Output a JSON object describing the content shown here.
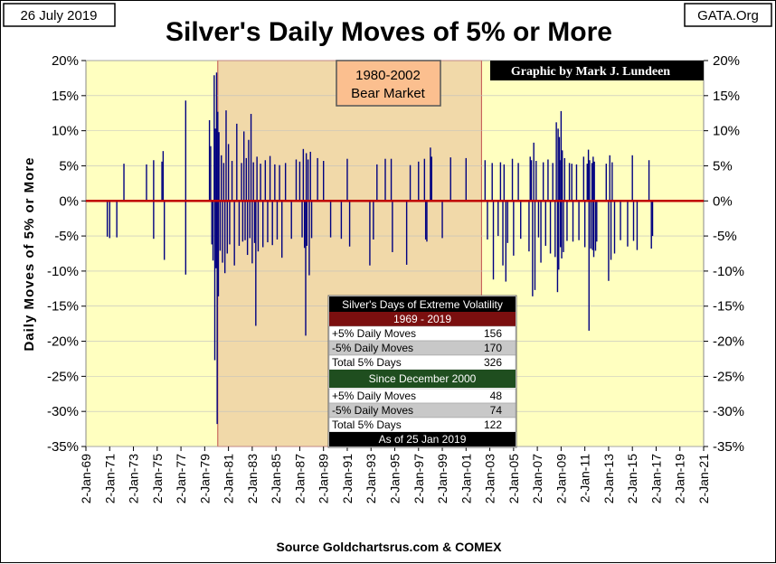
{
  "date_label": "26 July 2019",
  "site_label": "GATA.Org",
  "credit": "Graphic by Mark J. Lundeen",
  "source": "Source Goldchartsrus.com & COMEX",
  "bear_market_box": {
    "line1": "1980-2002",
    "line2": "Bear Market"
  },
  "colors": {
    "plot_bg": "#ffffc0",
    "bear_shade": "#f1d9a9",
    "bear_border": "#c0504d",
    "bars": "#000080",
    "zero_line": "#c00000",
    "label_box": "#fbbf8f",
    "table_header_red": "#7b0f0f",
    "table_header_green": "#1f4e1f",
    "table_row_gray": "#c8c8c8"
  },
  "chart_data": {
    "type": "bar",
    "title": "Silver's Daily Moves of 5% or More",
    "ylabel": "Daily Moves of 5% or More",
    "xlabel": "",
    "ylim": [
      -35,
      20
    ],
    "yticks": [
      20,
      15,
      10,
      5,
      0,
      -5,
      -10,
      -15,
      -20,
      -25,
      -30,
      -35
    ],
    "ytick_labels": [
      "20%",
      "15%",
      "10%",
      "5%",
      "0%",
      "-5%",
      "-10%",
      "-15%",
      "-20%",
      "-25%",
      "-30%",
      "-35%"
    ],
    "xlim": [
      1969.0,
      2021.0
    ],
    "xtick_labels": [
      "2-Jan-69",
      "2-Jan-71",
      "2-Jan-73",
      "2-Jan-75",
      "2-Jan-77",
      "2-Jan-79",
      "2-Jan-81",
      "2-Jan-83",
      "2-Jan-85",
      "2-Jan-87",
      "2-Jan-89",
      "2-Jan-91",
      "2-Jan-93",
      "2-Jan-95",
      "2-Jan-97",
      "2-Jan-99",
      "2-Jan-01",
      "2-Jan-03",
      "2-Jan-05",
      "2-Jan-07",
      "2-Jan-09",
      "2-Jan-11",
      "2-Jan-13",
      "2-Jan-15",
      "2-Jan-17",
      "2-Jan-19",
      "2-Jan-21"
    ],
    "shaded_period": {
      "label": "1980-2002 Bear Market",
      "start": 1980.1,
      "end": 2002.3
    },
    "series": [
      {
        "name": "Daily Moves of 5% or More",
        "points": [
          [
            1970.8,
            -5.1
          ],
          [
            1971.0,
            -5.3
          ],
          [
            1971.6,
            -5.2
          ],
          [
            1972.2,
            5.3
          ],
          [
            1974.1,
            5.2
          ],
          [
            1974.7,
            5.8
          ],
          [
            1974.7,
            -5.4
          ],
          [
            1975.4,
            5.6
          ],
          [
            1975.5,
            7.1
          ],
          [
            1975.6,
            -8.4
          ],
          [
            1977.4,
            14.3
          ],
          [
            1977.4,
            -10.5
          ],
          [
            1979.4,
            11.5
          ],
          [
            1979.5,
            7.8
          ],
          [
            1979.6,
            -6.2
          ],
          [
            1979.7,
            -8.5
          ],
          [
            1979.8,
            17.9
          ],
          [
            1979.85,
            -22.7
          ],
          [
            1979.9,
            10.3
          ],
          [
            1979.95,
            -9.6
          ],
          [
            1980.0,
            18.3
          ],
          [
            1980.05,
            -31.8
          ],
          [
            1980.1,
            12.7
          ],
          [
            1980.15,
            -13.6
          ],
          [
            1980.2,
            9.8
          ],
          [
            1980.3,
            -7.1
          ],
          [
            1980.4,
            6.5
          ],
          [
            1980.5,
            -8.8
          ],
          [
            1980.6,
            5.4
          ],
          [
            1980.7,
            -10.3
          ],
          [
            1980.8,
            12.9
          ],
          [
            1980.9,
            -7.5
          ],
          [
            1981.0,
            8.1
          ],
          [
            1981.1,
            -6.2
          ],
          [
            1981.3,
            5.7
          ],
          [
            1981.5,
            -9.2
          ],
          [
            1981.7,
            11.0
          ],
          [
            1981.9,
            -6.4
          ],
          [
            1982.1,
            5.4
          ],
          [
            1982.2,
            -5.8
          ],
          [
            1982.3,
            9.9
          ],
          [
            1982.4,
            -5.6
          ],
          [
            1982.5,
            6.1
          ],
          [
            1982.6,
            -7.7
          ],
          [
            1982.7,
            8.7
          ],
          [
            1982.8,
            -5.3
          ],
          [
            1982.9,
            12.4
          ],
          [
            1983.0,
            -8.9
          ],
          [
            1983.1,
            5.5
          ],
          [
            1983.2,
            -6.0
          ],
          [
            1983.3,
            -17.8
          ],
          [
            1983.4,
            6.3
          ],
          [
            1983.5,
            -7.2
          ],
          [
            1983.7,
            5.3
          ],
          [
            1983.9,
            -6.6
          ],
          [
            1984.1,
            5.8
          ],
          [
            1984.3,
            -5.9
          ],
          [
            1984.5,
            6.4
          ],
          [
            1984.7,
            -6.3
          ],
          [
            1984.9,
            5.2
          ],
          [
            1985.1,
            -5.5
          ],
          [
            1985.3,
            5.1
          ],
          [
            1985.5,
            -8.1
          ],
          [
            1985.8,
            5.4
          ],
          [
            1986.3,
            -5.4
          ],
          [
            1986.7,
            5.9
          ],
          [
            1987.0,
            5.6
          ],
          [
            1987.2,
            -5.2
          ],
          [
            1987.3,
            7.4
          ],
          [
            1987.4,
            -6.7
          ],
          [
            1987.5,
            -19.2
          ],
          [
            1987.55,
            6.8
          ],
          [
            1987.6,
            -6.4
          ],
          [
            1987.7,
            5.9
          ],
          [
            1987.8,
            -10.6
          ],
          [
            1987.9,
            7.0
          ],
          [
            1988.0,
            -5.3
          ],
          [
            1988.5,
            6.1
          ],
          [
            1989.0,
            5.7
          ],
          [
            1989.6,
            -5.2
          ],
          [
            1990.5,
            -5.4
          ],
          [
            1991.0,
            6.0
          ],
          [
            1991.2,
            -6.5
          ],
          [
            1992.9,
            -9.2
          ],
          [
            1993.2,
            -5.5
          ],
          [
            1993.5,
            5.2
          ],
          [
            1994.2,
            6.0
          ],
          [
            1994.7,
            6.0
          ],
          [
            1994.8,
            -7.3
          ],
          [
            1996.0,
            -9.1
          ],
          [
            1996.3,
            5.1
          ],
          [
            1997.0,
            5.6
          ],
          [
            1997.5,
            6.0
          ],
          [
            1997.6,
            -5.5
          ],
          [
            1997.7,
            -5.8
          ],
          [
            1998.0,
            7.6
          ],
          [
            1998.1,
            6.3
          ],
          [
            1999.0,
            -5.3
          ],
          [
            1999.7,
            6.2
          ],
          [
            2001.0,
            6.1
          ],
          [
            2002.6,
            5.8
          ],
          [
            2002.8,
            -5.5
          ],
          [
            2003.2,
            5.4
          ],
          [
            2003.3,
            -11.2
          ],
          [
            2003.7,
            -5.0
          ],
          [
            2003.9,
            5.5
          ],
          [
            2004.1,
            -9.2
          ],
          [
            2004.2,
            5.2
          ],
          [
            2004.35,
            -11.5
          ],
          [
            2004.5,
            -6.0
          ],
          [
            2004.9,
            6.0
          ],
          [
            2005.0,
            -7.8
          ],
          [
            2005.4,
            5.4
          ],
          [
            2005.6,
            -5.4
          ],
          [
            2006.3,
            -7.2
          ],
          [
            2006.4,
            6.3
          ],
          [
            2006.5,
            5.8
          ],
          [
            2006.6,
            -13.6
          ],
          [
            2006.7,
            8.3
          ],
          [
            2006.8,
            -12.7
          ],
          [
            2006.9,
            5.7
          ],
          [
            2007.1,
            -5.2
          ],
          [
            2007.3,
            -8.8
          ],
          [
            2007.5,
            5.5
          ],
          [
            2007.7,
            -6.4
          ],
          [
            2007.9,
            5.9
          ],
          [
            2008.1,
            -7.5
          ],
          [
            2008.3,
            5.4
          ],
          [
            2008.5,
            -8.0
          ],
          [
            2008.6,
            11.2
          ],
          [
            2008.7,
            -13.0
          ],
          [
            2008.75,
            10.3
          ],
          [
            2008.8,
            -9.8
          ],
          [
            2008.85,
            9.1
          ],
          [
            2008.9,
            5.8
          ],
          [
            2008.95,
            -6.6
          ],
          [
            2009.0,
            12.8
          ],
          [
            2009.05,
            -8.2
          ],
          [
            2009.1,
            7.2
          ],
          [
            2009.2,
            -7.3
          ],
          [
            2009.3,
            6.1
          ],
          [
            2009.5,
            -5.7
          ],
          [
            2009.7,
            5.4
          ],
          [
            2009.9,
            5.3
          ],
          [
            2010.0,
            -5.8
          ],
          [
            2010.3,
            5.2
          ],
          [
            2010.5,
            -5.6
          ],
          [
            2010.9,
            6.3
          ],
          [
            2011.0,
            -6.6
          ],
          [
            2011.2,
            5.3
          ],
          [
            2011.3,
            7.3
          ],
          [
            2011.35,
            -18.5
          ],
          [
            2011.4,
            5.8
          ],
          [
            2011.5,
            -6.8
          ],
          [
            2011.6,
            5.4
          ],
          [
            2011.65,
            -7.0
          ],
          [
            2011.7,
            6.3
          ],
          [
            2011.75,
            -8.0
          ],
          [
            2011.8,
            5.6
          ],
          [
            2011.9,
            -7.1
          ],
          [
            2012.0,
            -5.8
          ],
          [
            2012.8,
            5.3
          ],
          [
            2013.0,
            -11.4
          ],
          [
            2013.1,
            6.5
          ],
          [
            2013.2,
            -8.4
          ],
          [
            2013.3,
            5.5
          ],
          [
            2013.5,
            -7.5
          ],
          [
            2014.0,
            -5.6
          ],
          [
            2014.6,
            -6.5
          ],
          [
            2015.0,
            6.5
          ],
          [
            2015.1,
            -5.7
          ],
          [
            2015.4,
            -7.0
          ],
          [
            2016.4,
            5.8
          ],
          [
            2016.6,
            -6.8
          ],
          [
            2016.7,
            -5.0
          ]
        ]
      }
    ]
  },
  "volatility_table": {
    "title": "Silver's Days of Extreme Volatility",
    "period1": "1969 - 2019",
    "rows1": [
      {
        "label": "+5% Daily Moves",
        "value": "156"
      },
      {
        "label": "-5% Daily Moves",
        "value": "170"
      },
      {
        "label": "Total 5% Days",
        "value": "326"
      }
    ],
    "period2": "Since December 2000",
    "rows2": [
      {
        "label": "+5% Daily Moves",
        "value": "48"
      },
      {
        "label": "-5% Daily Moves",
        "value": "74"
      },
      {
        "label": "Total 5% Days",
        "value": "122"
      }
    ],
    "asof": "As of 25 Jan 2019"
  }
}
